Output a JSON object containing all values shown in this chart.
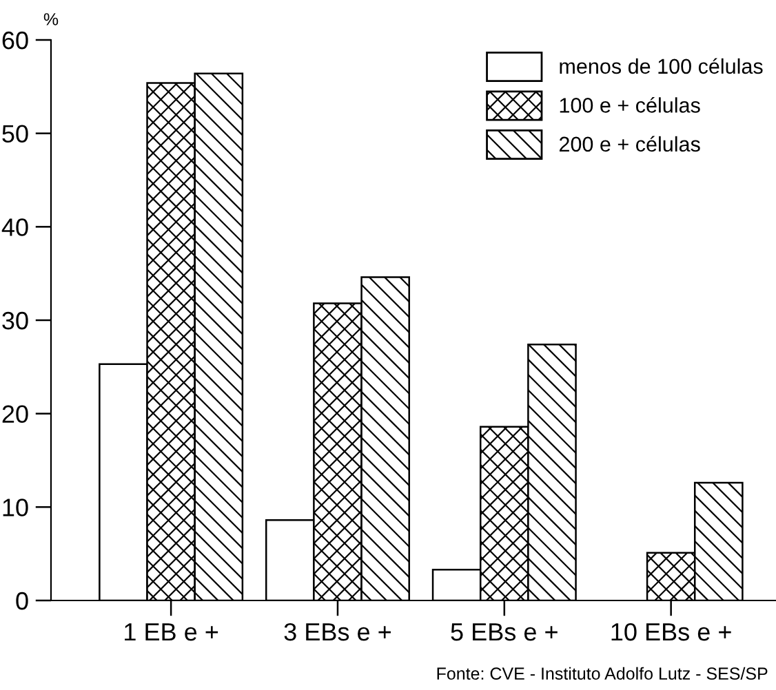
{
  "chart_data": {
    "type": "bar",
    "ylabel": "%",
    "categories": [
      "1 EB e +",
      "3 EBs e +",
      "5 EBs e +",
      "10 EBs e +"
    ],
    "series": [
      {
        "name": "menos de 100 células",
        "color": "#ffffff",
        "values": [
          25.3,
          8.6,
          3.3,
          null
        ]
      },
      {
        "name": "100 e + células",
        "color": "#000000",
        "values": [
          55.4,
          31.8,
          18.6,
          5.1
        ]
      },
      {
        "name": "200 e + células",
        "color": "#000000",
        "values": [
          56.4,
          34.6,
          27.4,
          12.6
        ]
      }
    ],
    "ylim": [
      0,
      60
    ],
    "yticks": [
      0,
      10,
      20,
      30,
      40,
      50,
      60
    ],
    "grid": false,
    "legend": "top right",
    "annotations": [
      "Fonte: CVE - Instituto Adolfo Lutz - SES/SP"
    ]
  }
}
